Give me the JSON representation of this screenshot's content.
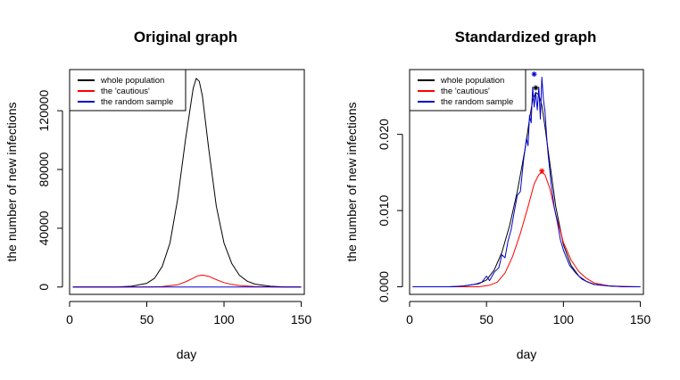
{
  "figure": {
    "background": "#ffffff"
  },
  "chart_data": [
    {
      "type": "line",
      "title": "Original graph",
      "xlabel": "day",
      "ylabel": "the number of new infections",
      "xlim": [
        0,
        152
      ],
      "ylim": [
        -5000,
        148000
      ],
      "xticks": [
        0,
        50,
        100,
        150
      ],
      "yticks": [
        0,
        40000,
        80000,
        120000
      ],
      "grid": false,
      "legend_position": "top-left",
      "series": [
        {
          "name": "whole population",
          "color": "#000000",
          "points": [
            [
              2,
              0
            ],
            [
              30,
              0
            ],
            [
              40,
              500
            ],
            [
              50,
              2500
            ],
            [
              55,
              6000
            ],
            [
              60,
              14000
            ],
            [
              65,
              30000
            ],
            [
              70,
              60000
            ],
            [
              75,
              100000
            ],
            [
              80,
              135000
            ],
            [
              82,
              142000
            ],
            [
              84,
              140000
            ],
            [
              86,
              130000
            ],
            [
              90,
              95000
            ],
            [
              95,
              55000
            ],
            [
              100,
              30000
            ],
            [
              105,
              16000
            ],
            [
              110,
              8000
            ],
            [
              115,
              4000
            ],
            [
              120,
              2000
            ],
            [
              130,
              500
            ],
            [
              140,
              0
            ],
            [
              150,
              0
            ]
          ]
        },
        {
          "name": "the 'cautious'",
          "color": "#ff0000",
          "points": [
            [
              2,
              0
            ],
            [
              50,
              0
            ],
            [
              60,
              300
            ],
            [
              70,
              1500
            ],
            [
              75,
              3500
            ],
            [
              80,
              6000
            ],
            [
              83,
              7600
            ],
            [
              86,
              8100
            ],
            [
              90,
              7300
            ],
            [
              95,
              5000
            ],
            [
              100,
              3000
            ],
            [
              105,
              1800
            ],
            [
              110,
              1000
            ],
            [
              120,
              300
            ],
            [
              135,
              0
            ],
            [
              150,
              0
            ]
          ]
        },
        {
          "name": "the random sample",
          "color": "#0000cc",
          "points": [
            [
              2,
              0
            ],
            [
              150,
              0
            ]
          ]
        }
      ]
    },
    {
      "type": "line",
      "title": "Standardized graph",
      "xlabel": "day",
      "ylabel": "the number of new infections",
      "xlim": [
        0,
        152
      ],
      "ylim": [
        -0.001,
        0.0285
      ],
      "xticks": [
        0,
        50,
        100,
        150
      ],
      "yticks": [
        0.0,
        0.01,
        0.02
      ],
      "ytick_labels": [
        "0.000",
        "0.010",
        "0.020"
      ],
      "grid": false,
      "legend_position": "top-left",
      "series": [
        {
          "name": "whole population",
          "color": "#000000",
          "points": [
            [
              2,
              0
            ],
            [
              25,
              0
            ],
            [
              35,
              0.0001
            ],
            [
              45,
              0.0004
            ],
            [
              50,
              0.0009
            ],
            [
              55,
              0.0022
            ],
            [
              60,
              0.0045
            ],
            [
              65,
              0.008
            ],
            [
              70,
              0.0125
            ],
            [
              75,
              0.018
            ],
            [
              78,
              0.022
            ],
            [
              80,
              0.0245
            ],
            [
              82,
              0.0255
            ],
            [
              84,
              0.0252
            ],
            [
              86,
              0.0238
            ],
            [
              88,
              0.021
            ],
            [
              90,
              0.018
            ],
            [
              95,
              0.0105
            ],
            [
              100,
              0.0055
            ],
            [
              105,
              0.0028
            ],
            [
              110,
              0.0014
            ],
            [
              115,
              0.0007
            ],
            [
              120,
              0.0003
            ],
            [
              130,
              0.0001
            ],
            [
              140,
              0
            ],
            [
              150,
              0
            ]
          ]
        },
        {
          "name": "the 'cautious'",
          "color": "#ff0000",
          "points": [
            [
              2,
              0
            ],
            [
              45,
              0
            ],
            [
              52,
              0.0002
            ],
            [
              57,
              0.0006
            ],
            [
              62,
              0.0018
            ],
            [
              67,
              0.004
            ],
            [
              72,
              0.007
            ],
            [
              77,
              0.0105
            ],
            [
              81,
              0.0135
            ],
            [
              84,
              0.0147
            ],
            [
              86,
              0.015
            ],
            [
              88,
              0.0147
            ],
            [
              91,
              0.013
            ],
            [
              95,
              0.0095
            ],
            [
              100,
              0.0058
            ],
            [
              105,
              0.0035
            ],
            [
              110,
              0.002
            ],
            [
              115,
              0.0011
            ],
            [
              120,
              0.0005
            ],
            [
              130,
              0.0001
            ],
            [
              150,
              0
            ]
          ]
        },
        {
          "name": "the random sample",
          "color": "#0000cc",
          "points": [
            [
              2,
              0
            ],
            [
              28,
              0
            ],
            [
              35,
              0.0001
            ],
            [
              42,
              0.0003
            ],
            [
              47,
              0.0006
            ],
            [
              50,
              0.0014
            ],
            [
              52,
              0.0008
            ],
            [
              55,
              0.0019
            ],
            [
              58,
              0.0025
            ],
            [
              60,
              0.0042
            ],
            [
              62,
              0.0038
            ],
            [
              64,
              0.006
            ],
            [
              66,
              0.0075
            ],
            [
              68,
              0.0098
            ],
            [
              70,
              0.012
            ],
            [
              72,
              0.0125
            ],
            [
              74,
              0.0165
            ],
            [
              76,
              0.0195
            ],
            [
              77,
              0.0185
            ],
            [
              78,
              0.0225
            ],
            [
              79,
              0.0215
            ],
            [
              80,
              0.0262
            ],
            [
              81,
              0.0236
            ],
            [
              82,
              0.0255
            ],
            [
              83,
              0.0232
            ],
            [
              84,
              0.0262
            ],
            [
              85,
              0.022
            ],
            [
              86,
              0.0275
            ],
            [
              87,
              0.0245
            ],
            [
              88,
              0.023
            ],
            [
              89,
              0.02
            ],
            [
              90,
              0.0175
            ],
            [
              91,
              0.0155
            ],
            [
              92,
              0.0135
            ],
            [
              94,
              0.0105
            ],
            [
              96,
              0.0085
            ],
            [
              98,
              0.0062
            ],
            [
              100,
              0.0048
            ],
            [
              104,
              0.0028
            ],
            [
              108,
              0.0018
            ],
            [
              112,
              0.001
            ],
            [
              116,
              0.0006
            ],
            [
              120,
              0.0003
            ],
            [
              125,
              0.0002
            ],
            [
              130,
              0.0001
            ],
            [
              140,
              0
            ],
            [
              150,
              0
            ]
          ]
        }
      ],
      "markers": [
        {
          "series": "the random sample",
          "x": 81,
          "y": 0.0279,
          "color": "#0000cc"
        },
        {
          "series": "whole population",
          "x": 82,
          "y": 0.0261,
          "color": "#000000"
        },
        {
          "series": "the 'cautious'",
          "x": 86,
          "y": 0.0152,
          "color": "#ff0000"
        }
      ]
    }
  ]
}
